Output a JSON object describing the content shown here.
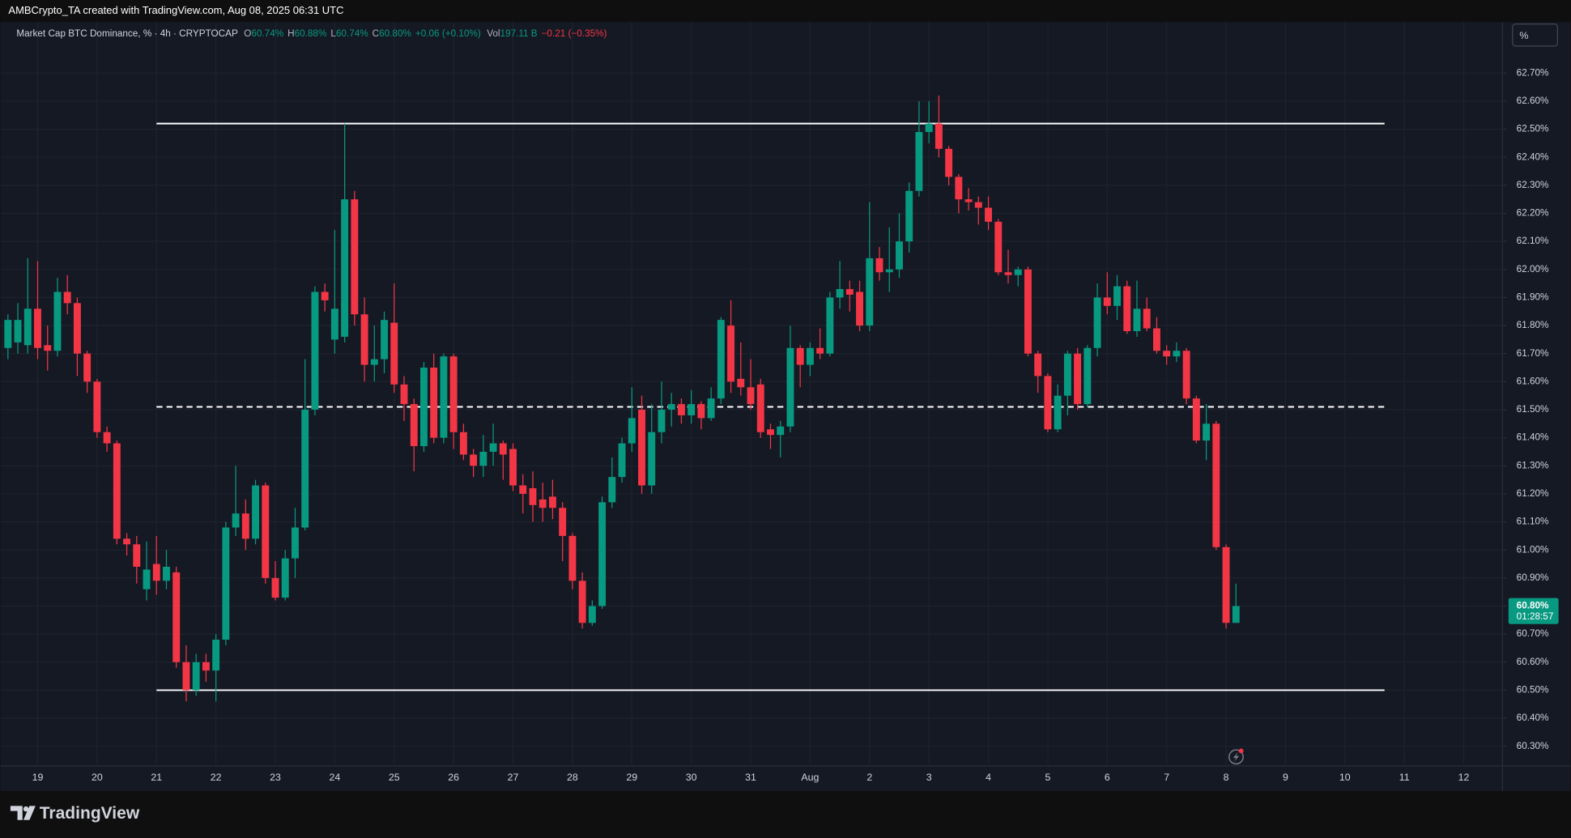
{
  "header": {
    "attribution": "AMBCrypto_TA created with TradingView.com, Aug 08, 2025 06:31 UTC"
  },
  "ui": {
    "scale_button": "%",
    "brand": "TradingView"
  },
  "chart_data": {
    "type": "candlestick",
    "title": "Market Cap BTC Dominance, % · 4h · CRYPTOCAP",
    "legend_values": [
      {
        "label": "O",
        "value": "60.74%"
      },
      {
        "label": "H",
        "value": "60.88%"
      },
      {
        "label": "L",
        "value": "60.74%"
      },
      {
        "label": "C",
        "value": "60.80%"
      }
    ],
    "change": "+0.06 (+0.10%)",
    "volume_label": "Vol",
    "volume": "197.11 B",
    "volume_change": "−0.21 (−0.35%)",
    "last_price": {
      "value": 60.8,
      "label": "60.80%"
    },
    "countdown": "01:28:57",
    "up_color": "#089981",
    "down_color": "#f23645",
    "grid": true,
    "ylim": [
      60.23,
      62.8
    ],
    "yticks": [
      {
        "value": 60.3,
        "label": "60.30%"
      },
      {
        "value": 60.4,
        "label": "60.40%"
      },
      {
        "value": 60.5,
        "label": "60.50%"
      },
      {
        "value": 60.6,
        "label": "60.60%"
      },
      {
        "value": 60.7,
        "label": "60.70%"
      },
      {
        "value": 60.8,
        "label": "60.80%"
      },
      {
        "value": 60.9,
        "label": "60.90%"
      },
      {
        "value": 61.0,
        "label": "61.00%"
      },
      {
        "value": 61.1,
        "label": "61.10%"
      },
      {
        "value": 61.2,
        "label": "61.20%"
      },
      {
        "value": 61.3,
        "label": "61.30%"
      },
      {
        "value": 61.4,
        "label": "61.40%"
      },
      {
        "value": 61.5,
        "label": "61.50%"
      },
      {
        "value": 61.6,
        "label": "61.60%"
      },
      {
        "value": 61.7,
        "label": "61.70%"
      },
      {
        "value": 61.8,
        "label": "61.80%"
      },
      {
        "value": 61.9,
        "label": "61.90%"
      },
      {
        "value": 62.0,
        "label": "62.00%"
      },
      {
        "value": 62.1,
        "label": "62.10%"
      },
      {
        "value": 62.2,
        "label": "62.20%"
      },
      {
        "value": 62.3,
        "label": "62.30%"
      },
      {
        "value": 62.4,
        "label": "62.40%"
      },
      {
        "value": 62.5,
        "label": "62.50%"
      },
      {
        "value": 62.6,
        "label": "62.60%"
      },
      {
        "value": 62.7,
        "label": "62.70%"
      }
    ],
    "levels": [
      {
        "value": 62.52,
        "style": "solid"
      },
      {
        "value": 61.51,
        "style": "dashed"
      },
      {
        "value": 60.5,
        "style": "solid"
      }
    ],
    "categories": [
      null,
      null,
      null,
      "19",
      null,
      null,
      null,
      null,
      null,
      "20",
      null,
      null,
      null,
      null,
      null,
      "21",
      null,
      null,
      null,
      null,
      null,
      "22",
      null,
      null,
      null,
      null,
      null,
      "23",
      null,
      null,
      null,
      null,
      null,
      "24",
      null,
      null,
      null,
      null,
      null,
      "25",
      null,
      null,
      null,
      null,
      null,
      "26",
      null,
      null,
      null,
      null,
      null,
      "27",
      null,
      null,
      null,
      null,
      null,
      "28",
      null,
      null,
      null,
      null,
      null,
      "29",
      null,
      null,
      null,
      null,
      null,
      "30",
      null,
      null,
      null,
      null,
      null,
      "31",
      null,
      null,
      null,
      null,
      null,
      "Aug",
      null,
      null,
      null,
      null,
      null,
      "2",
      null,
      null,
      null,
      null,
      null,
      "3",
      null,
      null,
      null,
      null,
      null,
      "4",
      null,
      null,
      null,
      null,
      null,
      "5",
      null,
      null,
      null,
      null,
      null,
      "6",
      null,
      null,
      null,
      null,
      null,
      "7",
      null,
      null,
      null,
      null,
      null,
      "8",
      null,
      null,
      null,
      null,
      null,
      "9",
      null,
      null,
      null,
      null,
      null,
      "10",
      null,
      null,
      null,
      null,
      null,
      "11",
      null,
      null,
      null,
      null,
      null,
      "12",
      null,
      null,
      null
    ],
    "open": [
      61.72,
      61.74,
      61.73,
      61.86,
      61.73,
      61.71,
      61.92,
      61.88,
      61.7,
      61.6,
      61.42,
      61.38,
      61.04,
      61.02,
      60.86,
      60.95,
      60.89,
      60.92,
      60.6,
      60.5,
      60.6,
      60.57,
      60.68,
      61.08,
      61.13,
      61.04,
      61.23,
      60.9,
      60.83,
      60.97,
      61.08,
      61.5,
      61.92,
      61.75,
      61.76,
      62.25,
      61.84,
      61.66,
      61.68,
      61.81,
      61.59,
      61.52,
      61.37,
      61.65,
      61.4,
      61.69,
      61.42,
      61.34,
      61.3,
      61.35,
      61.38,
      61.36,
      61.23,
      61.22,
      61.18,
      61.19,
      61.15,
      61.05,
      60.89,
      60.74,
      60.8,
      61.17,
      61.26,
      61.38,
      61.5,
      61.23,
      61.42,
      61.5,
      61.52,
      61.48,
      61.52,
      61.47,
      61.54,
      61.8,
      61.61,
      61.58,
      61.59,
      61.43,
      61.41,
      61.44,
      61.72,
      61.66,
      61.72,
      61.7,
      61.9,
      61.93,
      61.92,
      61.8,
      62.04,
      61.99,
      62.0,
      62.1,
      62.28,
      62.49,
      62.52,
      62.43,
      62.33,
      62.25,
      62.24,
      62.22,
      62.17,
      61.99,
      61.98,
      62.0,
      61.7,
      61.62,
      61.43,
      61.55,
      61.7,
      61.52,
      61.72,
      61.9,
      61.87,
      61.94,
      61.78,
      61.86,
      61.79,
      61.71,
      61.69,
      61.71,
      61.54,
      61.39,
      61.45,
      61.01,
      60.74,
      null,
      null,
      null,
      null,
      null,
      null,
      null,
      null,
      null,
      null,
      null,
      null,
      null,
      null,
      null,
      null,
      null,
      null,
      null,
      null,
      null,
      null,
      null,
      null,
      null,
      null
    ],
    "high": [
      61.84,
      61.88,
      62.04,
      62.03,
      61.8,
      61.97,
      61.98,
      61.9,
      61.71,
      61.61,
      61.44,
      61.39,
      61.06,
      61.05,
      61.03,
      61.05,
      61.0,
      60.94,
      60.66,
      60.63,
      60.63,
      60.7,
      61.1,
      61.3,
      61.18,
      61.25,
      61.24,
      60.96,
      61.0,
      61.15,
      61.68,
      61.94,
      61.95,
      62.14,
      62.52,
      62.28,
      61.9,
      61.8,
      61.85,
      61.95,
      61.62,
      61.54,
      61.67,
      61.7,
      61.7,
      61.7,
      61.45,
      61.36,
      61.41,
      61.45,
      61.39,
      61.38,
      61.27,
      61.28,
      61.24,
      61.25,
      61.17,
      61.06,
      60.92,
      60.82,
      61.19,
      61.33,
      61.4,
      61.58,
      61.55,
      61.52,
      61.6,
      61.56,
      61.54,
      61.57,
      61.53,
      61.58,
      61.83,
      61.89,
      61.74,
      61.68,
      61.61,
      61.45,
      61.46,
      61.8,
      61.73,
      61.74,
      61.79,
      61.92,
      62.03,
      61.96,
      61.96,
      62.24,
      62.08,
      62.15,
      62.2,
      62.31,
      62.6,
      62.6,
      62.62,
      62.44,
      62.34,
      62.29,
      62.26,
      62.26,
      62.18,
      62.07,
      62.01,
      62.01,
      61.71,
      61.63,
      61.59,
      61.71,
      61.72,
      61.73,
      61.95,
      61.99,
      61.98,
      61.96,
      61.96,
      61.9,
      61.83,
      61.73,
      61.74,
      61.72,
      61.55,
      61.52,
      61.46,
      61.02,
      60.88,
      null,
      null,
      null,
      null,
      null,
      null,
      null,
      null,
      null,
      null,
      null,
      null,
      null,
      null,
      null,
      null,
      null,
      null,
      null,
      null,
      null,
      null,
      null,
      null,
      null,
      null
    ],
    "low": [
      61.68,
      61.7,
      61.7,
      61.68,
      61.64,
      61.69,
      61.84,
      61.62,
      61.56,
      61.4,
      61.35,
      61.02,
      60.98,
      60.88,
      60.82,
      60.84,
      60.86,
      60.58,
      60.46,
      60.48,
      60.53,
      60.46,
      60.66,
      61.05,
      61.0,
      61.02,
      60.88,
      60.82,
      60.82,
      60.9,
      61.07,
      61.48,
      61.85,
      61.7,
      61.74,
      61.8,
      61.6,
      61.6,
      61.63,
      61.56,
      61.46,
      61.28,
      61.35,
      61.38,
      61.38,
      61.36,
      61.32,
      61.26,
      61.26,
      61.3,
      61.25,
      61.21,
      61.13,
      61.1,
      61.1,
      61.11,
      60.96,
      60.86,
      60.72,
      60.73,
      60.79,
      61.15,
      61.24,
      61.35,
      61.2,
      61.2,
      61.38,
      61.44,
      61.45,
      61.45,
      61.43,
      61.46,
      61.52,
      61.56,
      61.55,
      61.5,
      61.4,
      61.36,
      61.33,
      61.42,
      61.58,
      61.62,
      61.68,
      61.69,
      61.86,
      61.85,
      61.78,
      61.78,
      61.96,
      61.92,
      61.97,
      62.06,
      62.26,
      62.45,
      62.4,
      62.3,
      62.2,
      62.21,
      62.16,
      62.14,
      61.98,
      61.95,
      61.94,
      61.69,
      61.56,
      61.42,
      61.42,
      61.48,
      61.5,
      61.51,
      61.69,
      61.84,
      61.82,
      61.77,
      61.76,
      61.78,
      61.7,
      61.66,
      61.67,
      61.52,
      61.38,
      61.32,
      61.0,
      60.72,
      60.74,
      null,
      null,
      null,
      null,
      null,
      null,
      null,
      null,
      null,
      null,
      null,
      null,
      null,
      null,
      null,
      null,
      null,
      null,
      null,
      null,
      null,
      null,
      null,
      null,
      null,
      null
    ],
    "close": [
      61.82,
      61.82,
      61.86,
      61.72,
      61.71,
      61.92,
      61.88,
      61.7,
      61.6,
      61.42,
      61.38,
      61.04,
      61.02,
      60.94,
      60.93,
      60.89,
      60.94,
      60.6,
      60.5,
      60.6,
      60.57,
      60.68,
      61.08,
      61.13,
      61.04,
      61.23,
      60.9,
      60.83,
      60.97,
      61.08,
      61.5,
      61.92,
      61.89,
      61.86,
      62.25,
      61.84,
      61.66,
      61.68,
      61.82,
      61.59,
      61.52,
      61.37,
      61.65,
      61.4,
      61.69,
      61.42,
      61.34,
      61.3,
      61.35,
      61.38,
      61.34,
      61.23,
      61.2,
      61.16,
      61.15,
      61.15,
      61.05,
      60.89,
      60.74,
      60.8,
      61.17,
      61.26,
      61.38,
      61.47,
      61.23,
      61.42,
      61.5,
      61.52,
      61.48,
      61.52,
      61.47,
      61.54,
      61.82,
      61.6,
      61.58,
      61.52,
      61.42,
      61.41,
      61.44,
      61.72,
      61.66,
      61.72,
      61.7,
      61.9,
      61.93,
      61.91,
      61.8,
      62.04,
      61.99,
      62.0,
      62.1,
      62.28,
      62.49,
      62.52,
      62.43,
      62.33,
      62.25,
      62.24,
      62.22,
      62.17,
      61.99,
      61.98,
      62.0,
      61.7,
      61.62,
      61.43,
      61.55,
      61.7,
      61.52,
      61.72,
      61.9,
      61.87,
      61.94,
      61.78,
      61.86,
      61.79,
      61.71,
      61.69,
      61.71,
      61.54,
      61.39,
      61.45,
      61.01,
      60.74,
      60.8,
      null,
      null,
      null,
      null,
      null,
      null,
      null,
      null,
      null,
      null,
      null,
      null,
      null,
      null,
      null,
      null,
      null,
      null,
      null,
      null,
      null,
      null,
      null,
      null,
      null,
      null
    ]
  }
}
